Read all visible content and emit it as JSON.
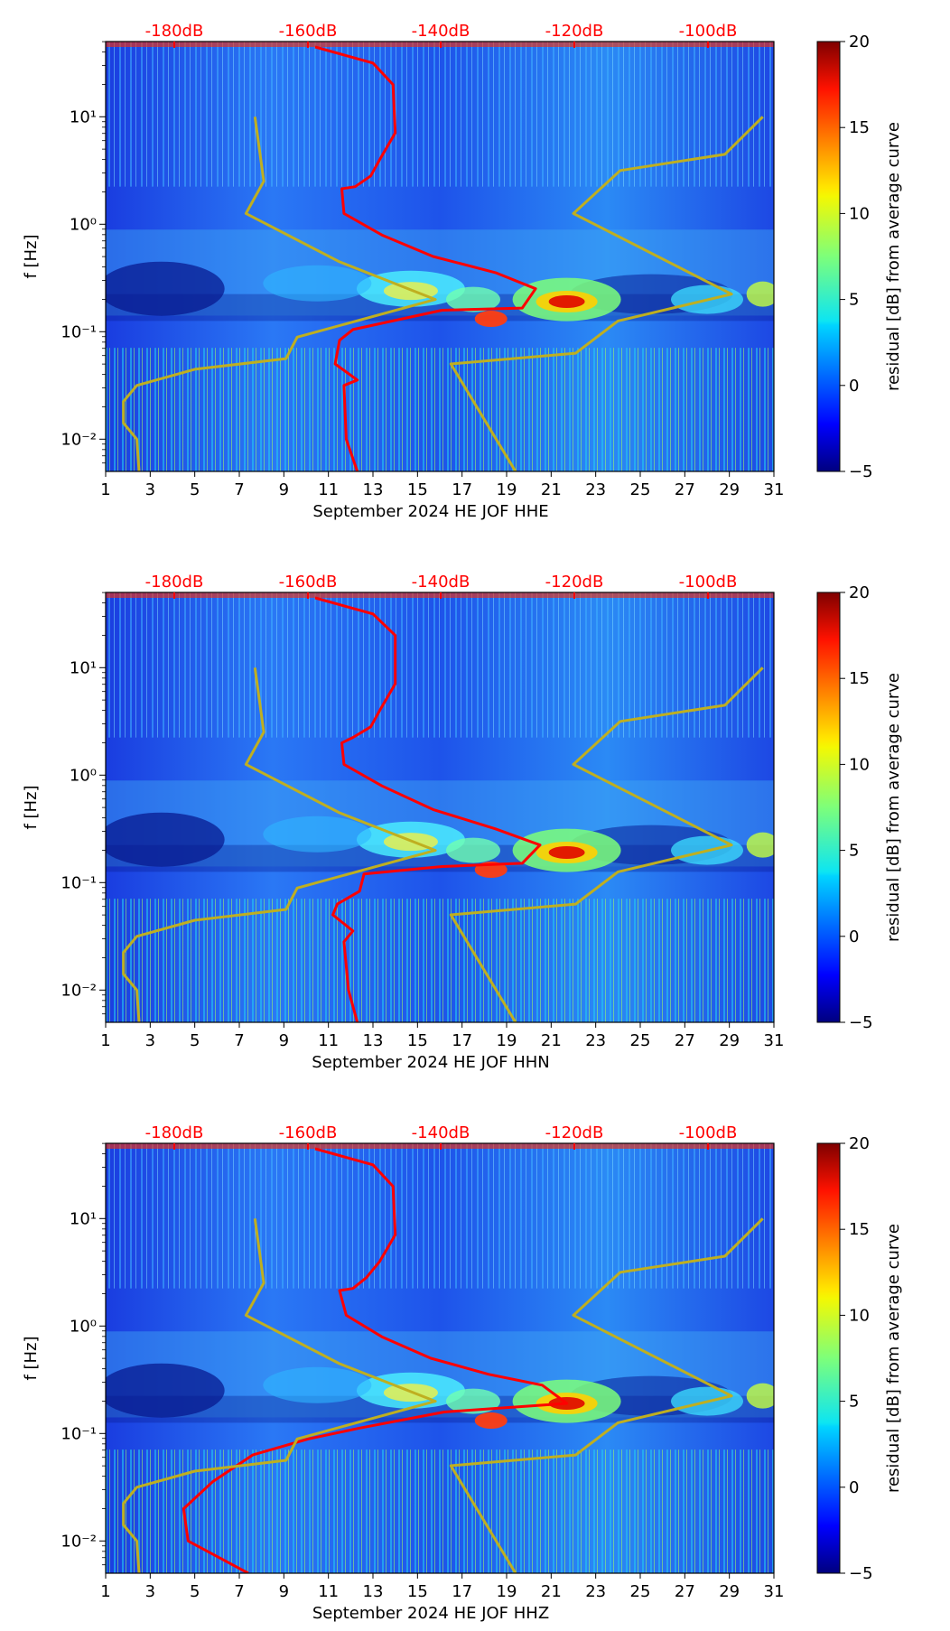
{
  "chart_data": [
    {
      "type": "heatmap",
      "title": "",
      "xlabel": "September 2024 HE JOF  HHE",
      "ylabel": "f [Hz]",
      "colorbar_label": "residual [dB] from average curve",
      "x_ticks": [
        "1",
        "3",
        "5",
        "7",
        "9",
        "11",
        "13",
        "15",
        "17",
        "19",
        "21",
        "23",
        "25",
        "27",
        "29",
        "31"
      ],
      "xlim": [
        1,
        31
      ],
      "y_ticks": [
        "10⁻²",
        "10⁻¹",
        "10⁰",
        "10¹"
      ],
      "ylim_log10": [
        -2.3,
        1.7
      ],
      "top_ticks": [
        "-180dB",
        "-160dB",
        "-140dB",
        "-120dB",
        "-100dB"
      ],
      "colorbar_ticks": [
        "−5",
        "0",
        "5",
        "10",
        "15",
        "20"
      ],
      "colorbar_range": [
        -5,
        20
      ],
      "series": [
        {
          "name": "red",
          "color": "#ff0000",
          "points": [
            [
              10.4,
              1.65
            ],
            [
              13,
              1.5
            ],
            [
              13.9,
              1.3
            ],
            [
              14,
              0.85
            ],
            [
              13.3,
              0.6
            ],
            [
              12.9,
              0.45
            ],
            [
              12.2,
              0.35
            ],
            [
              11.6,
              0.33
            ],
            [
              11.7,
              0.1
            ],
            [
              13.4,
              -0.1
            ],
            [
              15.7,
              -0.3
            ],
            [
              18.5,
              -0.45
            ],
            [
              20.3,
              -0.6
            ],
            [
              19.7,
              -0.78
            ],
            [
              16.1,
              -0.8
            ],
            [
              12.1,
              -0.98
            ],
            [
              11.5,
              -1.08
            ],
            [
              11.3,
              -1.3
            ],
            [
              12.3,
              -1.45
            ],
            [
              11.7,
              -1.5
            ],
            [
              11.8,
              -2.0
            ],
            [
              12.3,
              -2.3
            ]
          ]
        },
        {
          "name": "olive",
          "color": "#bfaf20",
          "points": [
            [
              7.7,
              1.0
            ],
            [
              8.1,
              0.4
            ],
            [
              7.3,
              0.1
            ],
            [
              11.5,
              -0.35
            ],
            [
              15.8,
              -0.7
            ],
            [
              9.6,
              -1.05
            ],
            [
              9.1,
              -1.25
            ],
            [
              5,
              -1.35
            ],
            [
              2.4,
              -1.5
            ],
            [
              1.8,
              -1.65
            ],
            [
              1.8,
              -1.85
            ],
            [
              2.4,
              -2.0
            ],
            [
              2.5,
              -2.3
            ]
          ]
        },
        {
          "name": "olive-right",
          "color": "#bfaf20",
          "points": [
            [
              30.5,
              1.0
            ],
            [
              28.8,
              0.65
            ],
            [
              24.1,
              0.5
            ],
            [
              22,
              0.1
            ],
            [
              29.1,
              -0.65
            ],
            [
              24,
              -0.9
            ],
            [
              22.1,
              -1.2
            ],
            [
              16.5,
              -1.3
            ],
            [
              19.4,
              -2.3
            ]
          ]
        }
      ]
    },
    {
      "type": "heatmap",
      "title": "",
      "xlabel": "September 2024 HE JOF  HHN",
      "ylabel": "f [Hz]",
      "colorbar_label": "residual [dB] from average curve",
      "x_ticks": [
        "1",
        "3",
        "5",
        "7",
        "9",
        "11",
        "13",
        "15",
        "17",
        "19",
        "21",
        "23",
        "25",
        "27",
        "29",
        "31"
      ],
      "xlim": [
        1,
        31
      ],
      "y_ticks": [
        "10⁻²",
        "10⁻¹",
        "10⁰",
        "10¹"
      ],
      "ylim_log10": [
        -2.3,
        1.7
      ],
      "top_ticks": [
        "-180dB",
        "-160dB",
        "-140dB",
        "-120dB",
        "-100dB"
      ],
      "colorbar_ticks": [
        "−5",
        "0",
        "5",
        "10",
        "15",
        "20"
      ],
      "colorbar_range": [
        -5,
        20
      ],
      "series": [
        {
          "name": "red",
          "color": "#ff0000",
          "points": [
            [
              10.4,
              1.65
            ],
            [
              13,
              1.5
            ],
            [
              14,
              1.3
            ],
            [
              14,
              0.85
            ],
            [
              13.3,
              0.6
            ],
            [
              12.9,
              0.45
            ],
            [
              12.1,
              0.35
            ],
            [
              11.6,
              0.3
            ],
            [
              11.7,
              0.1
            ],
            [
              13.4,
              -0.1
            ],
            [
              15.7,
              -0.32
            ],
            [
              18.5,
              -0.5
            ],
            [
              20.5,
              -0.65
            ],
            [
              19.7,
              -0.82
            ],
            [
              16.1,
              -0.85
            ],
            [
              12.6,
              -0.92
            ],
            [
              12.4,
              -1.08
            ],
            [
              11.4,
              -1.2
            ],
            [
              11.2,
              -1.3
            ],
            [
              12.1,
              -1.45
            ],
            [
              11.7,
              -1.55
            ],
            [
              11.9,
              -2.0
            ],
            [
              12.3,
              -2.3
            ]
          ]
        },
        {
          "name": "olive",
          "color": "#bfaf20",
          "points": [
            [
              7.7,
              1.0
            ],
            [
              8.1,
              0.4
            ],
            [
              7.3,
              0.1
            ],
            [
              11.5,
              -0.35
            ],
            [
              15.8,
              -0.7
            ],
            [
              9.6,
              -1.05
            ],
            [
              9.1,
              -1.25
            ],
            [
              5,
              -1.35
            ],
            [
              2.4,
              -1.5
            ],
            [
              1.8,
              -1.65
            ],
            [
              1.8,
              -1.85
            ],
            [
              2.4,
              -2.0
            ],
            [
              2.5,
              -2.3
            ]
          ]
        },
        {
          "name": "olive-right",
          "color": "#bfaf20",
          "points": [
            [
              30.5,
              1.0
            ],
            [
              28.8,
              0.65
            ],
            [
              24.1,
              0.5
            ],
            [
              22,
              0.1
            ],
            [
              29.1,
              -0.65
            ],
            [
              24,
              -0.9
            ],
            [
              22.1,
              -1.2
            ],
            [
              16.5,
              -1.3
            ],
            [
              19.4,
              -2.3
            ]
          ]
        }
      ]
    },
    {
      "type": "heatmap",
      "title": "",
      "xlabel": "September 2024 HE JOF  HHZ",
      "ylabel": "f [Hz]",
      "colorbar_label": "residual [dB] from average curve",
      "x_ticks": [
        "1",
        "3",
        "5",
        "7",
        "9",
        "11",
        "13",
        "15",
        "17",
        "19",
        "21",
        "23",
        "25",
        "27",
        "29",
        "31"
      ],
      "xlim": [
        1,
        31
      ],
      "y_ticks": [
        "10⁻²",
        "10⁻¹",
        "10⁰",
        "10¹"
      ],
      "ylim_log10": [
        -2.3,
        1.7
      ],
      "top_ticks": [
        "-180dB",
        "-160dB",
        "-140dB",
        "-120dB",
        "-100dB"
      ],
      "colorbar_ticks": [
        "−5",
        "0",
        "5",
        "10",
        "15",
        "20"
      ],
      "colorbar_range": [
        -5,
        20
      ],
      "series": [
        {
          "name": "red",
          "color": "#ff0000",
          "points": [
            [
              10.4,
              1.65
            ],
            [
              13,
              1.5
            ],
            [
              13.9,
              1.3
            ],
            [
              14,
              0.85
            ],
            [
              13.3,
              0.6
            ],
            [
              12.7,
              0.45
            ],
            [
              12.1,
              0.35
            ],
            [
              11.5,
              0.33
            ],
            [
              11.8,
              0.1
            ],
            [
              13.4,
              -0.1
            ],
            [
              15.6,
              -0.3
            ],
            [
              18.2,
              -0.45
            ],
            [
              20.6,
              -0.55
            ],
            [
              21.7,
              -0.72
            ],
            [
              16.2,
              -0.8
            ],
            [
              12.4,
              -0.95
            ],
            [
              10.1,
              -1.05
            ],
            [
              7.6,
              -1.2
            ],
            [
              5.8,
              -1.45
            ],
            [
              4.5,
              -1.7
            ],
            [
              4.7,
              -2.0
            ],
            [
              7.4,
              -2.3
            ]
          ]
        },
        {
          "name": "olive",
          "color": "#bfaf20",
          "points": [
            [
              7.7,
              1.0
            ],
            [
              8.1,
              0.4
            ],
            [
              7.3,
              0.1
            ],
            [
              11.5,
              -0.35
            ],
            [
              15.8,
              -0.7
            ],
            [
              9.6,
              -1.05
            ],
            [
              9.1,
              -1.25
            ],
            [
              5,
              -1.35
            ],
            [
              2.4,
              -1.5
            ],
            [
              1.8,
              -1.65
            ],
            [
              1.8,
              -1.85
            ],
            [
              2.4,
              -2.0
            ],
            [
              2.5,
              -2.3
            ]
          ]
        },
        {
          "name": "olive-right",
          "color": "#bfaf20",
          "points": [
            [
              30.5,
              1.0
            ],
            [
              28.8,
              0.65
            ],
            [
              24.1,
              0.5
            ],
            [
              22,
              0.1
            ],
            [
              29.1,
              -0.65
            ],
            [
              24,
              -0.9
            ],
            [
              22.1,
              -1.2
            ],
            [
              16.5,
              -1.3
            ],
            [
              19.4,
              -2.3
            ]
          ]
        }
      ]
    }
  ]
}
